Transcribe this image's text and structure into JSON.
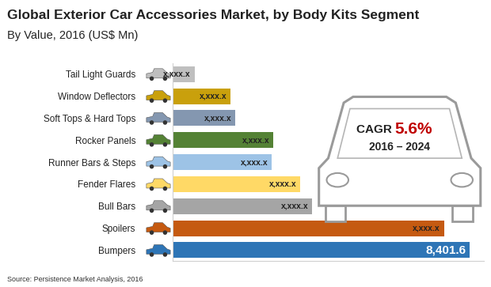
{
  "chart_data": {
    "type": "bar",
    "orientation": "horizontal",
    "title": "Global Exterior Car Accessories Market, by Body Kits Segment",
    "subtitle": "By Value, 2016 (US$ Mn)",
    "source": "Source: Persistence Market Analysis, 2016",
    "categories": [
      "Tail Light Guards",
      "Window Deflectors",
      "Soft Tops & Hard Tops",
      "Rocker Panels",
      "Runner Bars & Steps",
      "Fender Flares",
      "Bull Bars",
      "Spoilers",
      "Bumpers"
    ],
    "values": [
      613,
      1635,
      1771,
      2838,
      2800,
      3610,
      3951,
      7675,
      8401.6
    ],
    "value_labels": [
      "x,xxx.x",
      "x,xxx.x",
      "x,xxx.x",
      "x,xxx.x",
      "x,xxx.x",
      "x,xxx.x",
      "x,xxx.x",
      "x,xxx.x",
      "8,401.6"
    ],
    "colors": [
      "#bfbfbf",
      "#c9a00c",
      "#8497b0",
      "#548235",
      "#9dc3e6",
      "#ffd966",
      "#a5a5a5",
      "#c55a11",
      "#2e75b6"
    ],
    "data_labels": true,
    "tick_labels": "y",
    "grid": false,
    "xlim": [
      0,
      8800
    ],
    "cagr": {
      "label": "CAGR",
      "value": 5.6,
      "value_label": "5.6%",
      "period": "2016 – 2024"
    }
  }
}
